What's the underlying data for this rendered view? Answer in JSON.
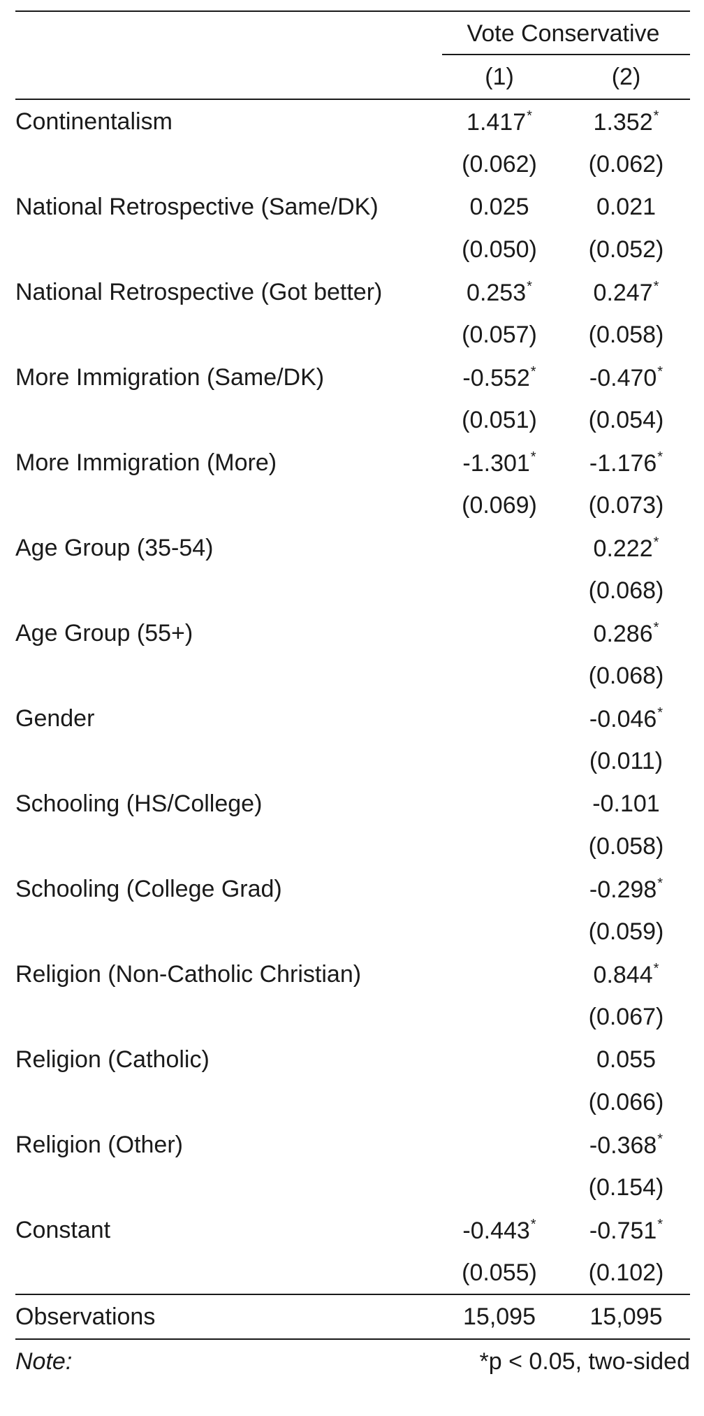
{
  "header": {
    "dependent_variable": "Vote Conservative",
    "models": [
      "(1)",
      "(2)"
    ]
  },
  "rows": [
    {
      "label": "Continentalism",
      "m1": {
        "coef": "1.417",
        "star": "*",
        "se": "(0.062)"
      },
      "m2": {
        "coef": "1.352",
        "star": "*",
        "se": "(0.062)"
      }
    },
    {
      "label": "National Retrospective (Same/DK)",
      "m1": {
        "coef": "0.025",
        "star": "",
        "se": "(0.050)"
      },
      "m2": {
        "coef": "0.021",
        "star": "",
        "se": "(0.052)"
      }
    },
    {
      "label": "National Retrospective (Got better)",
      "m1": {
        "coef": "0.253",
        "star": "*",
        "se": "(0.057)"
      },
      "m2": {
        "coef": "0.247",
        "star": "*",
        "se": "(0.058)"
      }
    },
    {
      "label": "More Immigration (Same/DK)",
      "m1": {
        "coef": "-0.552",
        "star": "*",
        "se": "(0.051)"
      },
      "m2": {
        "coef": "-0.470",
        "star": "*",
        "se": "(0.054)"
      }
    },
    {
      "label": "More Immigration (More)",
      "m1": {
        "coef": "-1.301",
        "star": "*",
        "se": "(0.069)"
      },
      "m2": {
        "coef": "-1.176",
        "star": "*",
        "se": "(0.073)"
      }
    },
    {
      "label": "Age Group (35-54)",
      "m1": {
        "coef": "",
        "star": "",
        "se": ""
      },
      "m2": {
        "coef": "0.222",
        "star": "*",
        "se": "(0.068)"
      }
    },
    {
      "label": "Age Group (55+)",
      "m1": {
        "coef": "",
        "star": "",
        "se": ""
      },
      "m2": {
        "coef": "0.286",
        "star": "*",
        "se": "(0.068)"
      }
    },
    {
      "label": "Gender",
      "m1": {
        "coef": "",
        "star": "",
        "se": ""
      },
      "m2": {
        "coef": "-0.046",
        "star": "*",
        "se": "(0.011)"
      }
    },
    {
      "label": "Schooling (HS/College)",
      "m1": {
        "coef": "",
        "star": "",
        "se": ""
      },
      "m2": {
        "coef": "-0.101",
        "star": "",
        "se": "(0.058)"
      }
    },
    {
      "label": "Schooling (College Grad)",
      "m1": {
        "coef": "",
        "star": "",
        "se": ""
      },
      "m2": {
        "coef": "-0.298",
        "star": "*",
        "se": "(0.059)"
      }
    },
    {
      "label": "Religion (Non-Catholic Christian)",
      "m1": {
        "coef": "",
        "star": "",
        "se": ""
      },
      "m2": {
        "coef": "0.844",
        "star": "*",
        "se": "(0.067)"
      }
    },
    {
      "label": "Religion (Catholic)",
      "m1": {
        "coef": "",
        "star": "",
        "se": ""
      },
      "m2": {
        "coef": "0.055",
        "star": "",
        "se": "(0.066)"
      }
    },
    {
      "label": "Religion (Other)",
      "m1": {
        "coef": "",
        "star": "",
        "se": ""
      },
      "m2": {
        "coef": "-0.368",
        "star": "*",
        "se": "(0.154)"
      }
    },
    {
      "label": "Constant",
      "m1": {
        "coef": "-0.443",
        "star": "*",
        "se": "(0.055)"
      },
      "m2": {
        "coef": "-0.751",
        "star": "*",
        "se": "(0.102)"
      }
    }
  ],
  "observations": {
    "label": "Observations",
    "m1": "15,095",
    "m2": "15,095"
  },
  "note": {
    "label": "Note:",
    "text": "*p < 0.05, two-sided"
  },
  "colors": {
    "text": "#1a1a1a",
    "rule": "#1a1a1a",
    "background": "#ffffff"
  }
}
